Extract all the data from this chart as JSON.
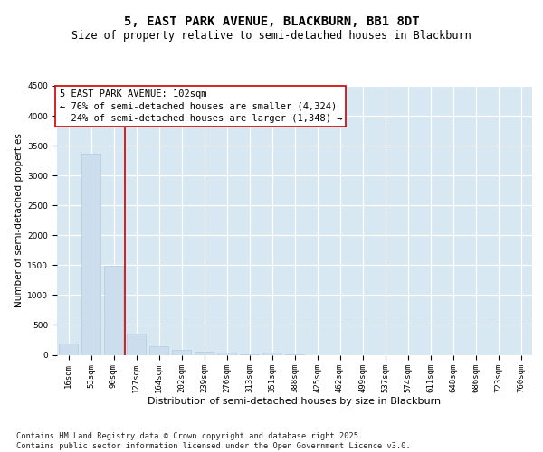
{
  "title1": "5, EAST PARK AVENUE, BLACKBURN, BB1 8DT",
  "title2": "Size of property relative to semi-detached houses in Blackburn",
  "xlabel": "Distribution of semi-detached houses by size in Blackburn",
  "ylabel": "Number of semi-detached properties",
  "bar_color": "#ccdded",
  "bar_edge_color": "#adc4d8",
  "grid_color": "#ffffff",
  "bg_color": "#d8e8f2",
  "categories": [
    "16sqm",
    "53sqm",
    "90sqm",
    "127sqm",
    "164sqm",
    "202sqm",
    "239sqm",
    "276sqm",
    "313sqm",
    "351sqm",
    "388sqm",
    "425sqm",
    "462sqm",
    "499sqm",
    "537sqm",
    "574sqm",
    "611sqm",
    "648sqm",
    "686sqm",
    "723sqm",
    "760sqm"
  ],
  "values": [
    185,
    3370,
    1490,
    355,
    140,
    90,
    55,
    35,
    10,
    35,
    5,
    0,
    0,
    0,
    0,
    0,
    0,
    0,
    0,
    0,
    0
  ],
  "ylim": [
    0,
    4500
  ],
  "yticks": [
    0,
    500,
    1000,
    1500,
    2000,
    2500,
    3000,
    3500,
    4000,
    4500
  ],
  "vline_color": "#cc0000",
  "annotation_text": "5 EAST PARK AVENUE: 102sqm\n← 76% of semi-detached houses are smaller (4,324)\n  24% of semi-detached houses are larger (1,348) →",
  "annotation_box_color": "#cc0000",
  "footnote": "Contains HM Land Registry data © Crown copyright and database right 2025.\nContains public sector information licensed under the Open Government Licence v3.0.",
  "title1_fontsize": 10,
  "title2_fontsize": 8.5,
  "xlabel_fontsize": 8,
  "ylabel_fontsize": 7.5,
  "tick_fontsize": 6.5,
  "annotation_fontsize": 7.5,
  "footnote_fontsize": 6.2
}
